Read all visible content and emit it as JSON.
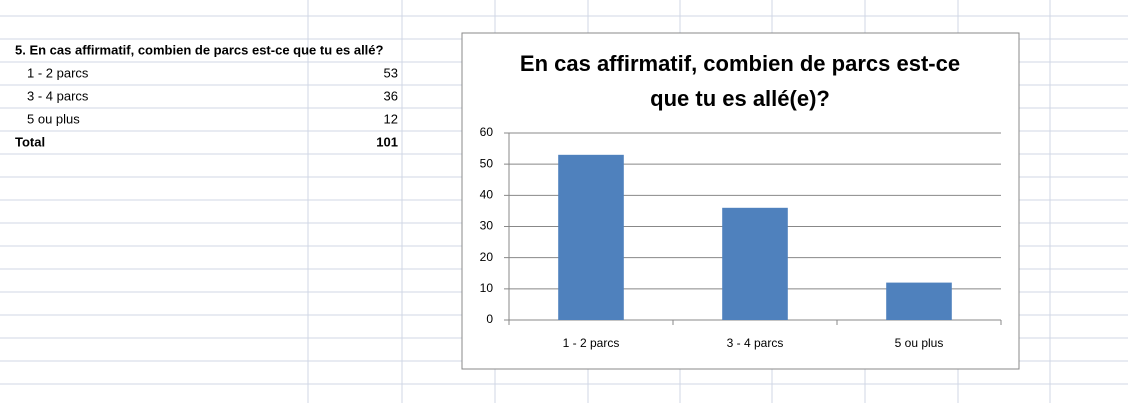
{
  "table": {
    "header": "5. En cas affirmatif, combien de parcs est-ce que tu es allé?",
    "rows": [
      [
        "1 - 2 parcs",
        "53"
      ],
      [
        "3 - 4 parcs",
        "36"
      ],
      [
        "5 ou plus",
        "12"
      ]
    ],
    "total": [
      "Total",
      "101"
    ]
  },
  "chart_data": {
    "type": "bar",
    "title": "En cas affirmatif, combien de parcs est-ce que tu es allé(e)?",
    "categories": [
      "1 - 2 parcs",
      "3 - 4 parcs",
      "5 ou plus"
    ],
    "values": [
      53,
      36,
      12
    ],
    "color": "#4f81bd",
    "ylim": [
      0,
      60
    ],
    "yticks": [
      0,
      10,
      20,
      30,
      40,
      50,
      60
    ],
    "grid": true
  }
}
